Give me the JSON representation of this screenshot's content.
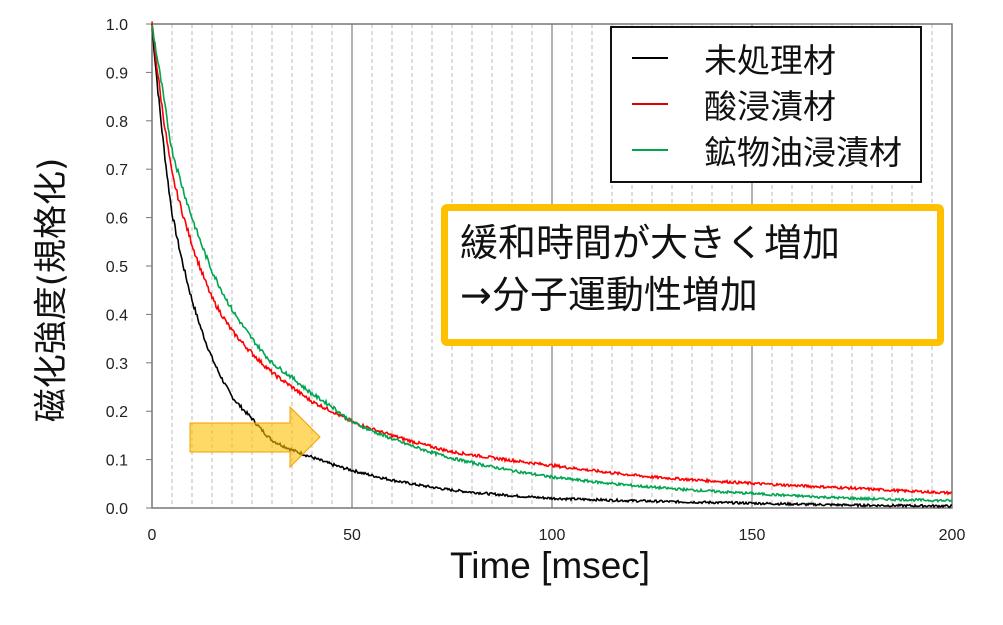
{
  "chart_data": {
    "type": "line",
    "title": "",
    "xlabel": "Time [msec]",
    "ylabel": "磁化強度(規格化)",
    "xlim": [
      0,
      200
    ],
    "ylim": [
      0,
      1.0
    ],
    "xticks": [
      "0",
      "50",
      "100",
      "150",
      "200"
    ],
    "yticks": [
      "0.0",
      "0.1",
      "0.2",
      "0.3",
      "0.4",
      "0.5",
      "0.6",
      "0.7",
      "0.8",
      "0.9",
      "1.0"
    ],
    "grid": {
      "x_major": true,
      "x_minor_dashed": true,
      "minor_step": 5,
      "y": false
    },
    "legend_position": "top-right",
    "x": [
      0,
      2.5,
      5,
      10,
      15,
      20,
      25,
      30,
      35,
      40,
      45,
      50,
      75,
      100,
      125,
      150,
      175,
      200
    ],
    "series": [
      {
        "name": "未処理材",
        "color": "#000000",
        "values": [
          1.0,
          0.78,
          0.61,
          0.43,
          0.31,
          0.23,
          0.185,
          0.14,
          0.12,
          0.105,
          0.09,
          0.078,
          0.037,
          0.02,
          0.014,
          0.01,
          0.006,
          0.004
        ]
      },
      {
        "name": "酸浸漬材",
        "color": "#FF0000",
        "values": [
          1.0,
          0.83,
          0.69,
          0.545,
          0.434,
          0.366,
          0.32,
          0.28,
          0.25,
          0.22,
          0.2,
          0.178,
          0.116,
          0.088,
          0.064,
          0.051,
          0.041,
          0.031
        ]
      },
      {
        "name": "鉱物油浸漬材",
        "color": "#00A550",
        "values": [
          1.0,
          0.87,
          0.74,
          0.6,
          0.49,
          0.41,
          0.35,
          0.3,
          0.27,
          0.236,
          0.21,
          0.178,
          0.103,
          0.064,
          0.043,
          0.03,
          0.02,
          0.015
        ]
      }
    ],
    "annotations": [
      {
        "text_lines": [
          "緩和時間が大きく増加",
          "→分子運動性増加"
        ],
        "border_color": "#FFC000"
      },
      {
        "shape": "arrow-right",
        "color": "#FFC000"
      }
    ]
  }
}
